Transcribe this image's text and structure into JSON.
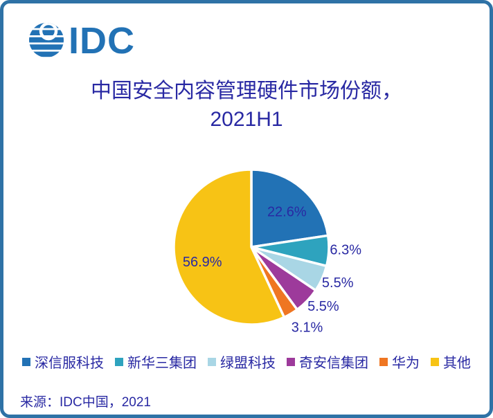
{
  "logo": {
    "text": "IDC",
    "color": "#2272b5"
  },
  "title": {
    "line1": "中国安全内容管理硬件市场份额，",
    "line2": "2021H1",
    "color": "#2929a3"
  },
  "chart_data": {
    "type": "pie",
    "title": "中国安全内容管理硬件市场份额，2021H1",
    "units": "%",
    "start_angle": "12-o-clock",
    "direction": "clockwise",
    "legend_position": "bottom",
    "label_color": "#2929a3",
    "series": [
      {
        "name": "深信服科技",
        "value": 22.6,
        "label": "22.6%",
        "color": "#2272b5"
      },
      {
        "name": "新华三集团",
        "value": 6.3,
        "label": "6.3%",
        "color": "#2ea3be"
      },
      {
        "name": "绿盟科技",
        "value": 5.5,
        "label": "5.5%",
        "color": "#a9d6e5"
      },
      {
        "name": "奇安信集团",
        "value": 5.5,
        "label": "5.5%",
        "color": "#9d3a9b"
      },
      {
        "name": "华为",
        "value": 3.1,
        "label": "3.1%",
        "color": "#ef7622"
      },
      {
        "name": "其他",
        "value": 56.9,
        "label": "56.9%",
        "color": "#f7c315"
      }
    ]
  },
  "source": {
    "text": "来源：IDC中国，2021"
  }
}
